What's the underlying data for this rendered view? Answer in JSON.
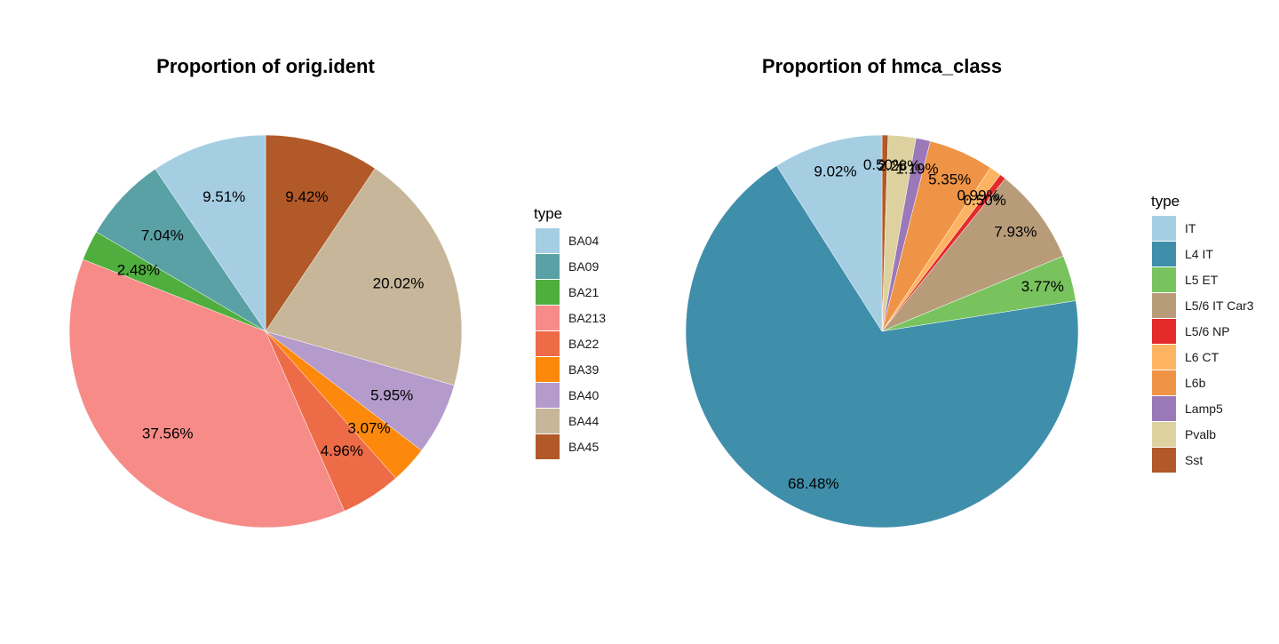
{
  "legend_title": "type",
  "chart_data": [
    {
      "type": "pie",
      "title": "Proportion of orig.ident",
      "legend_title": "type",
      "slices": [
        {
          "label": "BA04",
          "value": 9.51,
          "text": "9.51%",
          "color": "#a6cee3"
        },
        {
          "label": "BA09",
          "value": 7.04,
          "text": "7.04%",
          "color": "#5aa1a5"
        },
        {
          "label": "BA21",
          "value": 2.48,
          "text": "2.48%",
          "color": "#4fae3d"
        },
        {
          "label": "BA213",
          "value": 37.56,
          "text": "37.56%",
          "color": "#f78b88"
        },
        {
          "label": "BA22",
          "value": 4.96,
          "text": "4.96%",
          "color": "#ee6b48"
        },
        {
          "label": "BA39",
          "value": 3.07,
          "text": "3.07%",
          "color": "#fd890c"
        },
        {
          "label": "BA40",
          "value": 5.95,
          "text": "5.95%",
          "color": "#b49bcb"
        },
        {
          "label": "BA44",
          "value": 20.02,
          "text": "20.02%",
          "color": "#c7b699"
        },
        {
          "label": "BA45",
          "value": 9.42,
          "text": "9.42%",
          "color": "#b15928"
        }
      ]
    },
    {
      "type": "pie",
      "title": "Proportion of hmca_class",
      "legend_title": "type",
      "slices": [
        {
          "label": "IT",
          "value": 9.02,
          "text": "9.02%",
          "color": "#a6cee3"
        },
        {
          "label": "L4 IT",
          "value": 68.48,
          "text": "68.48%",
          "color": "#3f8fab"
        },
        {
          "label": "L5 ET",
          "value": 3.77,
          "text": "3.77%",
          "color": "#78c35e"
        },
        {
          "label": "L5/6 IT Car3",
          "value": 7.93,
          "text": "7.93%",
          "color": "#b89c7a"
        },
        {
          "label": "L5/6 NP",
          "value": 0.5,
          "text": "0.50%",
          "color": "#e52a2a"
        },
        {
          "label": "L6 CT",
          "value": 0.99,
          "text": "0.99%",
          "color": "#fdb462"
        },
        {
          "label": "L6b",
          "value": 5.35,
          "text": "5.35%",
          "color": "#ef9446"
        },
        {
          "label": "Lamp5",
          "value": 1.19,
          "text": "1.19%",
          "color": "#9b78b7"
        },
        {
          "label": "Pvalb",
          "value": 2.28,
          "text": "2.28%",
          "color": "#ddd29f"
        },
        {
          "label": "Sst",
          "value": 0.5,
          "text": "0.50%",
          "color": "#b15928"
        }
      ]
    }
  ]
}
